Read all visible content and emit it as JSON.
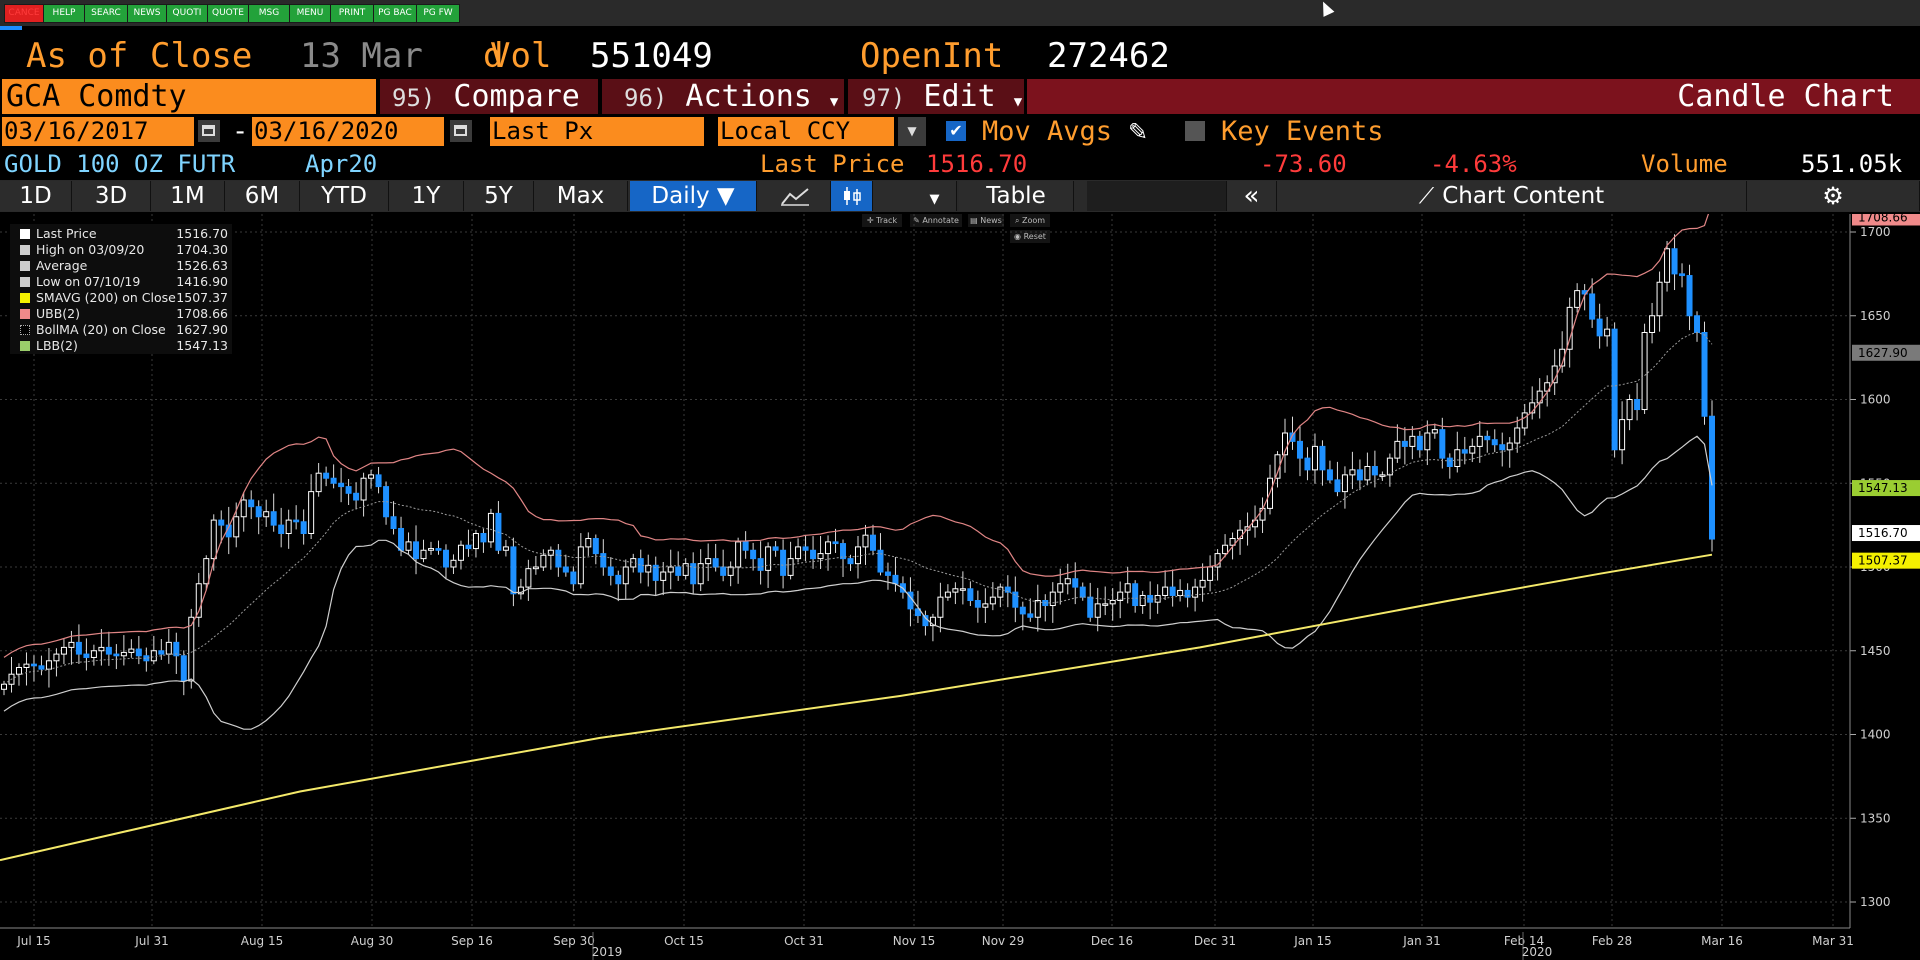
{
  "function_keys": [
    {
      "label": "CANCE",
      "color": "red"
    },
    {
      "label": "HELP",
      "color": "green"
    },
    {
      "label": "SEARC",
      "color": "green"
    },
    {
      "label": "NEWS",
      "color": "green"
    },
    {
      "label": "QUOTI",
      "color": "green"
    },
    {
      "label": "QUOTE",
      "color": "green"
    },
    {
      "label": "MSG",
      "color": "green"
    },
    {
      "label": "MENU",
      "color": "green"
    },
    {
      "label": "PRINT",
      "color": "green"
    },
    {
      "label": "PG BAC",
      "color": "green"
    },
    {
      "label": "PG FW",
      "color": "green"
    }
  ],
  "header": {
    "as_of": "As of",
    "close": "Close",
    "date": "13 Mar",
    "d": "d",
    "vol_label": "Vol",
    "vol_value": "551049",
    "openint_label": "OpenInt",
    "openint_value": "272462"
  },
  "toolbar_row": {
    "ticker": "GCA Comdty",
    "compare_num": "95)",
    "compare": "Compare",
    "actions_num": "96)",
    "actions": "Actions",
    "edit_num": "97)",
    "edit": "Edit",
    "chart_title": "Candle Chart"
  },
  "settings_row": {
    "start_date": "03/16/2017",
    "dash": "-",
    "end_date": "03/16/2020",
    "field": "Last Px",
    "currency": "Local CCY",
    "mov_avgs": "Mov Avgs",
    "key_events": "Key Events"
  },
  "quote_row": {
    "security": "GOLD 100 OZ FUTR",
    "contract": "Apr20",
    "last_price_label": "Last Price",
    "last_price": "1516.70",
    "change": "-73.60",
    "change_pct": "-4.63%",
    "volume_label": "Volume",
    "volume": "551.05k"
  },
  "range_buttons": [
    "1D",
    "3D",
    "1M",
    "6M",
    "YTD",
    "1Y",
    "5Y",
    "Max"
  ],
  "period": "Daily ▼",
  "table_label": "Table",
  "collapse_label": "«",
  "chart_content_label": "Chart Content",
  "tools": [
    "Track",
    "Annotate",
    "News",
    "Zoom",
    "Reset"
  ],
  "legend": [
    {
      "label": "Last Price",
      "value": "1516.70",
      "color": "#ffffff"
    },
    {
      "label": "High on 03/09/20",
      "value": "1704.30",
      "color": "#cccccc"
    },
    {
      "label": "Average",
      "value": "1526.63",
      "color": "#cccccc"
    },
    {
      "label": "Low on 07/10/19",
      "value": "1416.90",
      "color": "#cccccc"
    },
    {
      "label": "SMAVG (200)  on Close",
      "value": "1507.37",
      "color": "#f4f000"
    },
    {
      "label": "UBB(2)",
      "value": "1708.66",
      "color": "#f08a8a"
    },
    {
      "label": "BollMA (20)  on Close",
      "value": "1627.90",
      "color": "#000000"
    },
    {
      "label": "LBB(2)",
      "value": "1547.13",
      "color": "#9acd6a"
    }
  ],
  "colors": {
    "orange": "#fb8c1e",
    "candle_blue": "#1e90ff",
    "sma": "#f4e96a",
    "ubb": "#e08585",
    "lbb": "#cfcfcf",
    "bollma": "#9a9a9a"
  },
  "chart_data": {
    "type": "candlestick",
    "title": "",
    "ylabel": "",
    "ylim": [
      1290,
      1725
    ],
    "yticks": [
      "1700",
      "1650",
      "1600",
      "1550",
      "1500",
      "1450",
      "1400",
      "1350",
      "1300"
    ],
    "x_ticks": [
      "Jul 15",
      "Jul 31",
      "Aug 15",
      "Aug 30",
      "Sep 16",
      "Sep 30",
      "Oct 15",
      "Oct 31",
      "Nov 15",
      "Nov 29",
      "Dec 16",
      "Dec 31",
      "Jan 15",
      "Jan 31",
      "Feb 14",
      "Feb 28",
      "Mar 16",
      "Mar 31"
    ],
    "x_years": [
      "2019",
      "2020"
    ],
    "price_tags": [
      {
        "value": "1708.66",
        "series": "UBB"
      },
      {
        "value": "1627.90",
        "series": "BollMA"
      },
      {
        "value": "1547.13",
        "series": "LBB"
      },
      {
        "value": "1516.70",
        "series": "Last Price"
      },
      {
        "value": "1507.37",
        "series": "SMAVG"
      }
    ],
    "closes": [
      1430,
      1436,
      1440,
      1442,
      1441,
      1439,
      1444,
      1448,
      1452,
      1455,
      1448,
      1446,
      1450,
      1452,
      1448,
      1447,
      1449,
      1451,
      1447,
      1444,
      1450,
      1448,
      1455,
      1447,
      1432,
      1470,
      1490,
      1505,
      1528,
      1525,
      1518,
      1530,
      1540,
      1536,
      1530,
      1533,
      1525,
      1520,
      1528,
      1527,
      1520,
      1545,
      1556,
      1553,
      1550,
      1548,
      1544,
      1540,
      1553,
      1555,
      1548,
      1530,
      1523,
      1510,
      1515,
      1505,
      1510,
      1511,
      1510,
      1500,
      1504,
      1513,
      1511,
      1520,
      1515,
      1532,
      1510,
      1512,
      1484,
      1488,
      1499,
      1500,
      1507,
      1510,
      1500,
      1497,
      1490,
      1512,
      1517,
      1508,
      1500,
      1495,
      1490,
      1500,
      1505,
      1497,
      1501,
      1492,
      1497,
      1500,
      1495,
      1502,
      1490,
      1502,
      1505,
      1500,
      1495,
      1500,
      1515,
      1510,
      1505,
      1498,
      1512,
      1510,
      1495,
      1505,
      1512,
      1510,
      1505,
      1508,
      1515,
      1514,
      1505,
      1502,
      1512,
      1519,
      1510,
      1497,
      1495,
      1490,
      1485,
      1475,
      1471,
      1465,
      1470,
      1482,
      1485,
      1487,
      1487,
      1480,
      1476,
      1478,
      1482,
      1488,
      1485,
      1476,
      1472,
      1470,
      1480,
      1477,
      1485,
      1490,
      1493,
      1488,
      1482,
      1470,
      1478,
      1478,
      1480,
      1485,
      1490,
      1477,
      1483,
      1479,
      1483,
      1488,
      1483,
      1486,
      1482,
      1488,
      1492,
      1500,
      1508,
      1513,
      1517,
      1522,
      1524,
      1528,
      1535,
      1553,
      1567,
      1580,
      1575,
      1565,
      1558,
      1572,
      1558,
      1552,
      1545,
      1555,
      1558,
      1552,
      1560,
      1555,
      1555,
      1565,
      1575,
      1572,
      1578,
      1570,
      1580,
      1582,
      1565,
      1560,
      1570,
      1568,
      1572,
      1578,
      1576,
      1573,
      1570,
      1574,
      1583,
      1592,
      1598,
      1605,
      1610,
      1620,
      1630,
      1655,
      1665,
      1663,
      1648,
      1638,
      1642,
      1570,
      1588,
      1600,
      1594,
      1640,
      1650,
      1670,
      1690,
      1675,
      1674,
      1650,
      1640,
      1590,
      1516.7
    ]
  }
}
